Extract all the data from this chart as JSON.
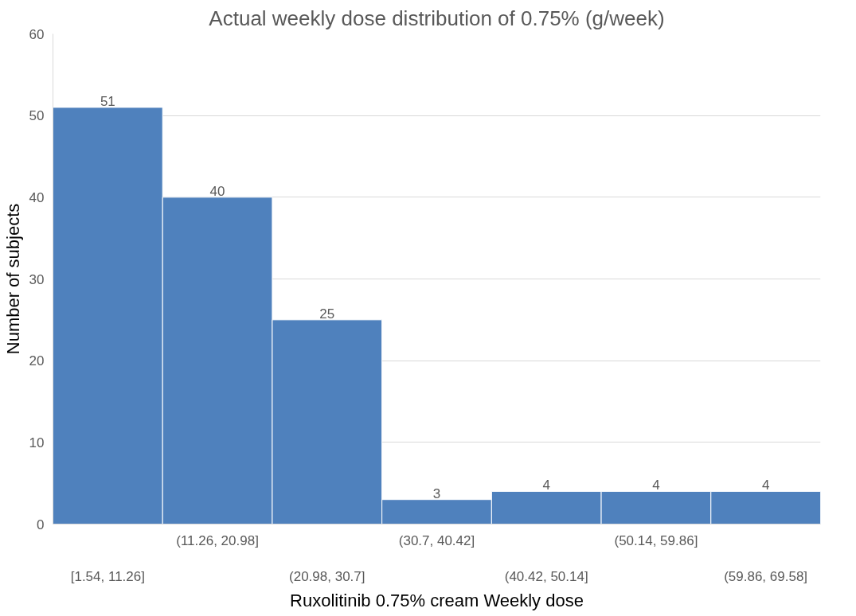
{
  "chart_data": {
    "type": "bar",
    "title": "Actual weekly dose distribution of 0.75% (g/week)",
    "xlabel": "Ruxolitinib 0.75% cream Weekly dose",
    "ylabel": "Number of subjects",
    "categories": [
      "[1.54, 11.26]",
      "(11.26, 20.98]",
      "(20.98, 30.7]",
      "(30.7, 40.42]",
      "(40.42, 50.14]",
      "(50.14, 59.86]",
      "(59.86, 69.58]"
    ],
    "values": [
      51,
      40,
      25,
      3,
      4,
      4,
      4
    ],
    "color": "#4f81bd",
    "ylim": [
      0,
      60
    ],
    "yticks": [
      0,
      10,
      20,
      30,
      40,
      50,
      60
    ],
    "grid": "y",
    "data_labels": true
  }
}
